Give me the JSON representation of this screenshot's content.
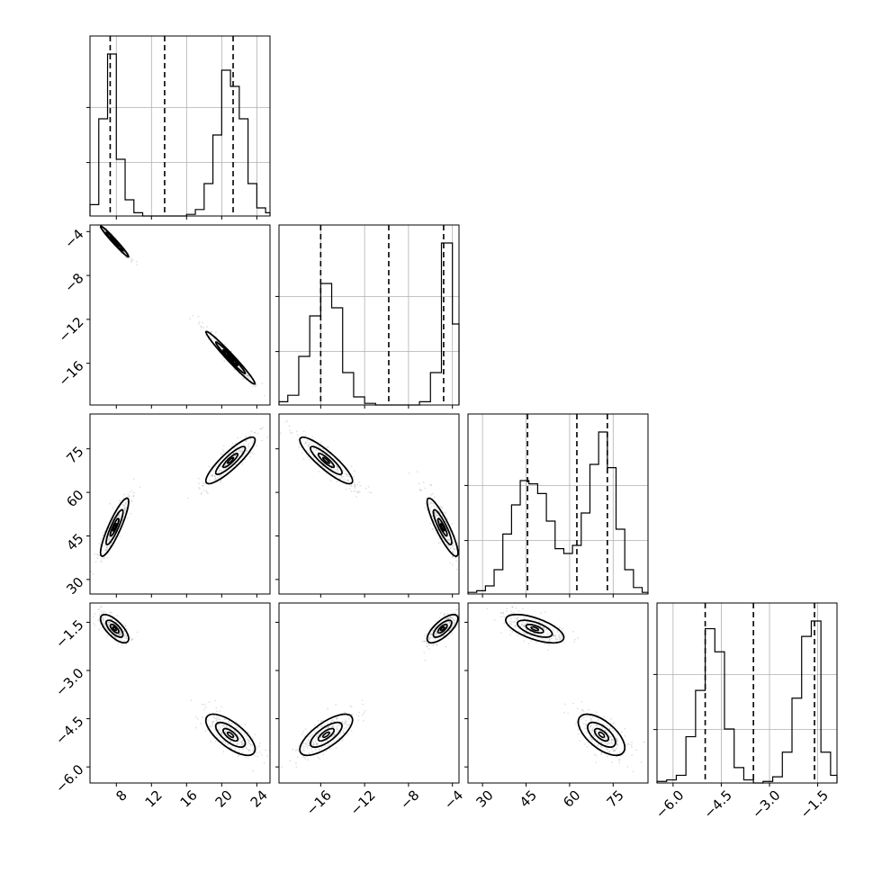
{
  "chart_data": {
    "type": "corner",
    "title": "",
    "parameters": [
      {
        "range": [
          5,
          25.5
        ],
        "ticks": [
          8,
          12,
          16,
          20,
          24
        ],
        "tick_labels": [
          "8",
          "12",
          "16",
          "20",
          "24"
        ],
        "grid": [
          8,
          12,
          16,
          20,
          24
        ],
        "quantiles": [
          7.3,
          13.5,
          21.3
        ]
      },
      {
        "range": [
          -19.8,
          -3.4
        ],
        "ticks": [
          -16,
          -12,
          -8,
          -4
        ],
        "tick_labels": [
          "−16",
          "−12",
          "−8",
          "−4"
        ],
        "grid": [
          -16,
          -12,
          -8,
          -4
        ],
        "quantiles": [
          -16.0,
          -9.8,
          -4.8
        ]
      },
      {
        "range": [
          25,
          87
        ],
        "ticks": [
          30,
          45,
          60,
          75
        ],
        "tick_labels": [
          "30",
          "45",
          "60",
          "75"
        ],
        "grid": [
          30,
          45,
          60,
          75
        ],
        "quantiles": [
          45.5,
          62.5,
          73.0
        ]
      },
      {
        "range": [
          -6.5,
          -0.9
        ],
        "ticks": [
          -6.0,
          -4.5,
          -3.0,
          -1.5
        ],
        "tick_labels": [
          "−6.0",
          "−4.5",
          "−3.0",
          "−1.5"
        ],
        "grid": [
          -6.0,
          -4.5,
          -3.0,
          -1.5
        ],
        "quantiles": [
          -5.0,
          -3.5,
          -1.6
        ]
      }
    ],
    "y_tick_labels": {
      "1": [
        "−4",
        "−8",
        "−12",
        "−16"
      ],
      "2": [
        "75",
        "60",
        "45",
        "30"
      ],
      "3": [
        "−1.5",
        "−3.0",
        "−4.5",
        "−6.0"
      ]
    },
    "histograms": [
      {
        "edges": [
          5,
          6,
          7,
          8,
          9,
          10,
          11,
          12,
          13,
          14,
          15,
          16,
          17,
          18,
          19,
          20,
          21,
          22,
          23,
          24,
          25,
          25.5
        ],
        "counts": [
          0.07,
          0.6,
          1.0,
          0.35,
          0.1,
          0.02,
          0,
          0,
          0,
          0,
          0,
          0.01,
          0.04,
          0.2,
          0.5,
          0.9,
          0.8,
          0.6,
          0.2,
          0.05,
          0.02
        ]
      },
      {
        "edges": [
          -19.8,
          -19,
          -18,
          -17,
          -16,
          -15,
          -14,
          -13,
          -12,
          -11,
          -10,
          -9,
          -8,
          -7,
          -6,
          -5,
          -4,
          -3.4
        ],
        "counts": [
          0.02,
          0.06,
          0.3,
          0.55,
          0.75,
          0.6,
          0.2,
          0.05,
          0.01,
          0,
          0,
          0,
          0,
          0.02,
          0.2,
          1.0,
          0.5
        ]
      },
      {
        "edges": [
          25,
          28,
          31,
          34,
          37,
          40,
          43,
          46,
          49,
          52,
          55,
          58,
          61,
          64,
          67,
          70,
          73,
          76,
          79,
          82,
          85,
          87
        ],
        "counts": [
          0.01,
          0.02,
          0.05,
          0.15,
          0.37,
          0.55,
          0.7,
          0.68,
          0.62,
          0.45,
          0.28,
          0.25,
          0.3,
          0.5,
          0.8,
          1.0,
          0.78,
          0.4,
          0.15,
          0.04,
          0.01
        ]
      },
      {
        "edges": [
          -6.5,
          -6.2,
          -5.9,
          -5.6,
          -5.3,
          -5.0,
          -4.7,
          -4.4,
          -4.1,
          -3.8,
          -3.5,
          -3.2,
          -2.9,
          -2.6,
          -2.3,
          -2.0,
          -1.7,
          -1.4,
          -1.1,
          -0.9
        ],
        "counts": [
          0.01,
          0.02,
          0.05,
          0.3,
          0.6,
          1.0,
          0.85,
          0.35,
          0.1,
          0.02,
          0,
          0.01,
          0.04,
          0.2,
          0.55,
          0.95,
          1.05,
          0.2,
          0.05
        ]
      }
    ],
    "clusters": [
      {
        "center": [
          7.8,
          -4.9,
          48.0,
          -1.7
        ],
        "sd": [
          0.8,
          0.7,
          5.0,
          0.22
        ]
      },
      {
        "center": [
          21.0,
          -15.5,
          71.0,
          -5.0
        ],
        "sd": [
          1.4,
          1.2,
          4.0,
          0.32
        ]
      }
    ],
    "colors": {
      "line": "#000000",
      "grid": "#b0b0b0",
      "density": "#000000"
    }
  }
}
